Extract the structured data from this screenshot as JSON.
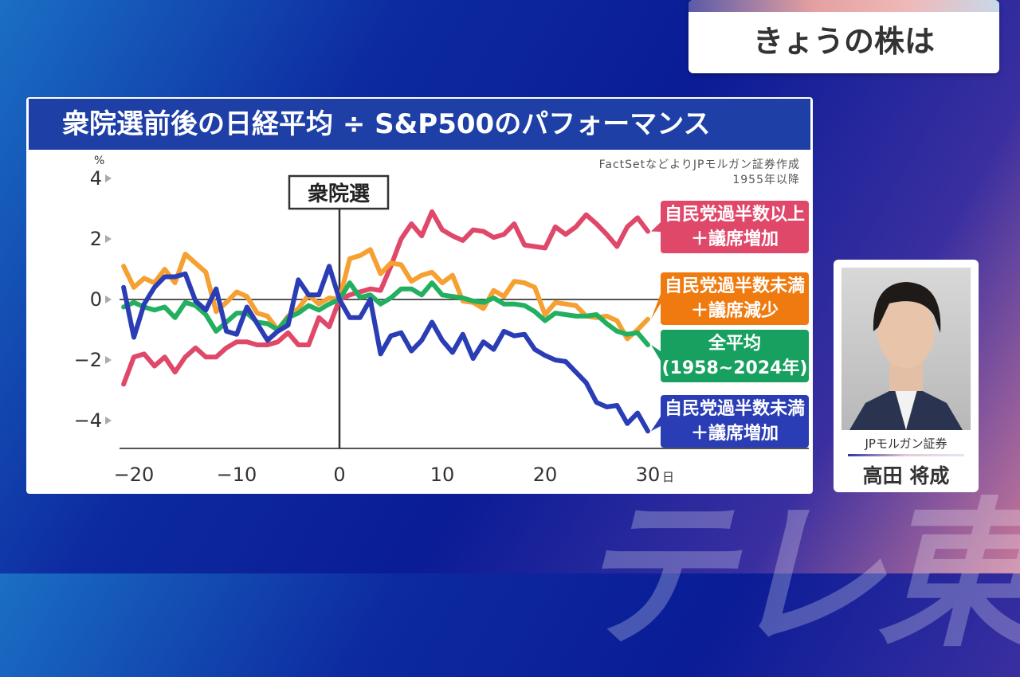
{
  "header": {
    "title": "きょうの株は"
  },
  "watermark": "テレ東",
  "chart_panel": {
    "title": "衆院選前後の日経平均 ÷ S&P500のパフォーマンス",
    "source_line1": "FactSetなどよりJPモルガン証券作成",
    "source_line2": "1955年以降"
  },
  "guest": {
    "org": "JPモルガン証券",
    "name": "高田 将成"
  },
  "chart_data": {
    "type": "line",
    "title": "衆院選前後の日経平均 ÷ S&P500のパフォーマンス",
    "ylabel": "%",
    "xunit": "日",
    "event_marker": {
      "x": 0,
      "label": "衆院選"
    },
    "xlim": [
      -21,
      30
    ],
    "ylim": [
      -5,
      4.5
    ],
    "xticks": [
      {
        "v": -20,
        "label": "−20"
      },
      {
        "v": -10,
        "label": "−10"
      },
      {
        "v": 0,
        "label": "0"
      },
      {
        "v": 10,
        "label": "10"
      },
      {
        "v": 20,
        "label": "20"
      },
      {
        "v": 30,
        "label": "30"
      }
    ],
    "yticks": [
      {
        "v": 4,
        "label": "4"
      },
      {
        "v": 2,
        "label": "2"
      },
      {
        "v": 0,
        "label": "0"
      },
      {
        "v": -2,
        "label": "−2"
      },
      {
        "v": -4,
        "label": "−4"
      }
    ],
    "x_start": -21,
    "series": [
      {
        "name": "自民党過半数以上＋議席増加",
        "line1": "自民党過半数以上",
        "line2": "＋議席増加",
        "color": "#e0486a",
        "values": [
          -2.8,
          -1.9,
          -1.8,
          -2.2,
          -1.9,
          -2.4,
          -1.9,
          -1.6,
          -1.9,
          -1.9,
          -1.6,
          -1.4,
          -1.4,
          -1.5,
          -1.5,
          -1.4,
          -1.1,
          -1.5,
          -1.5,
          -0.6,
          -0.9,
          0,
          0.15,
          0.25,
          0.35,
          0.3,
          1.1,
          2.0,
          2.5,
          2.1,
          2.9,
          2.3,
          2.1,
          1.95,
          2.3,
          2.25,
          2.05,
          2.15,
          2.5,
          1.8,
          1.75,
          1.7,
          2.4,
          2.15,
          2.4,
          2.8,
          2.5,
          2.15,
          1.75,
          2.4,
          2.7,
          2.25
        ]
      },
      {
        "name": "自民党過半数未満＋議席減少",
        "line1": "自民党過半数未満",
        "line2": "＋議席減少",
        "color": "#f5a030",
        "box_color": "#ee7a10",
        "values": [
          1.1,
          0.4,
          0.7,
          0.55,
          1.0,
          0.55,
          1.5,
          1.2,
          0.9,
          -0.4,
          -0.1,
          0.25,
          0.1,
          -0.45,
          -0.55,
          -1.0,
          -0.55,
          -0.3,
          0.15,
          -0.15,
          0.05,
          0,
          1.35,
          1.45,
          1.65,
          0.85,
          1.2,
          1.15,
          0.6,
          0.8,
          0.9,
          0.55,
          0.8,
          -0.05,
          -0.1,
          -0.3,
          0.3,
          0.1,
          0.6,
          0.55,
          0.4,
          -0.5,
          -0.1,
          -0.15,
          -0.2,
          -0.55,
          -0.6,
          -0.55,
          -0.7,
          -1.3,
          -1.0,
          -0.65
        ]
      },
      {
        "name": "全平均（1958〜2024年）",
        "line1": "全平均",
        "line2": "(1958~2024年)",
        "color": "#22b060",
        "box_color": "#18a060",
        "values": [
          -0.25,
          -0.1,
          -0.25,
          -0.35,
          -0.25,
          -0.6,
          -0.1,
          -0.2,
          -0.5,
          -1.05,
          -0.75,
          -0.45,
          -0.45,
          -0.75,
          -0.8,
          -1.0,
          -0.6,
          -0.45,
          -0.2,
          -0.35,
          -0.15,
          0,
          0.55,
          0.07,
          0.15,
          -0.15,
          0.05,
          0.35,
          0.35,
          0.15,
          0.55,
          0.15,
          0.1,
          0.05,
          -0.05,
          -0.1,
          0.05,
          -0.15,
          -0.15,
          -0.2,
          -0.4,
          -0.7,
          -0.45,
          -0.5,
          -0.55,
          -0.55,
          -0.5,
          -0.8,
          -1.05,
          -1.15,
          -1.1,
          -1.5
        ]
      },
      {
        "name": "自民党過半数未満＋議席増加",
        "line1": "自民党過半数未満",
        "line2": "＋議席増加",
        "color": "#2a3db5",
        "values": [
          0.4,
          -1.25,
          -0.15,
          0.4,
          0.75,
          0.75,
          0.85,
          -0.05,
          -0.35,
          0.35,
          -1.05,
          -1.15,
          -0.25,
          -0.8,
          -1.35,
          -1.05,
          -0.85,
          0.65,
          0.15,
          0.15,
          1.1,
          0,
          -0.6,
          -0.6,
          0.0,
          -1.8,
          -1.2,
          -1.1,
          -1.7,
          -1.35,
          -0.75,
          -1.35,
          -1.75,
          -1.15,
          -1.95,
          -1.4,
          -1.65,
          -1.05,
          -1.2,
          -1.15,
          -1.65,
          -1.85,
          -2.0,
          -2.05,
          -2.4,
          -2.75,
          -3.4,
          -3.55,
          -3.5,
          -4.1,
          -3.75,
          -4.35
        ]
      }
    ]
  }
}
